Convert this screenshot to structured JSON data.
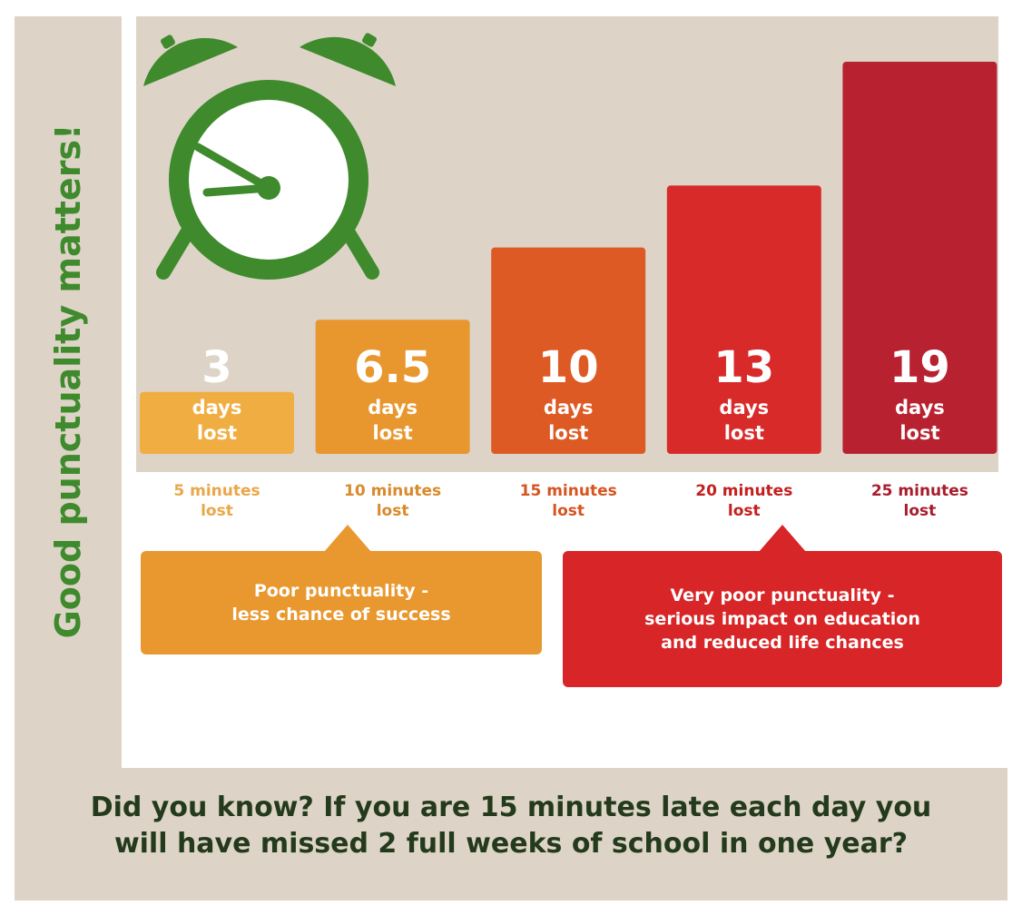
{
  "side_title": "Good punctuality matters!",
  "chart_data": {
    "type": "bar",
    "categories": [
      "5 minutes lost",
      "10 minutes lost",
      "15 minutes lost",
      "20 minutes lost",
      "25 minutes lost"
    ],
    "values": [
      3,
      6.5,
      10,
      13,
      19
    ],
    "value_labels": [
      "3",
      "6.5",
      "10",
      "13",
      "19"
    ],
    "value_unit_line1": "days",
    "value_unit_line2": "lost",
    "category_lines": [
      [
        "5 minutes",
        "lost"
      ],
      [
        "10 minutes",
        "lost"
      ],
      [
        "15 minutes",
        "lost"
      ],
      [
        "20 minutes",
        "lost"
      ],
      [
        "25 minutes",
        "lost"
      ]
    ],
    "bar_colors": [
      "#f0ae42",
      "#e8972f",
      "#de5a25",
      "#d92a2a",
      "#b82230"
    ],
    "label_colors": [
      "#e9a74a",
      "#d98a2c",
      "#d6541f",
      "#c41f1f",
      "#a81d2c"
    ],
    "title": "",
    "xlabel": "",
    "ylabel": "",
    "grid": false,
    "legend": "none"
  },
  "callouts": [
    {
      "line1": "Poor punctuality -",
      "line2": "less chance of success",
      "line3": "",
      "color": "#e8982f"
    },
    {
      "line1": "Very poor punctuality -",
      "line2": "serious impact on education",
      "line3": "and reduced life chances",
      "color": "#d82527"
    }
  ],
  "fact": {
    "line1": "Did you know? If you are 15 minutes late each day you",
    "line2": "will have missed 2 full weeks of school in one year?"
  },
  "icon": "alarm-clock-icon",
  "colors": {
    "accent_green": "#3e8a2c",
    "panel": "#ddd4c7"
  }
}
